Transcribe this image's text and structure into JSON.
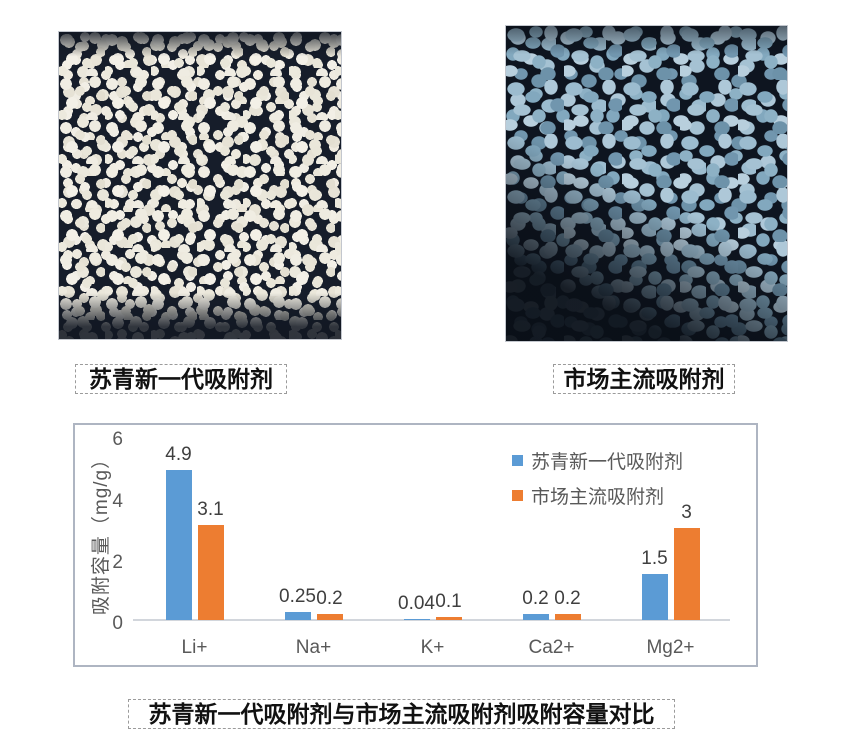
{
  "photo_labels": {
    "left": "苏青新一代吸附剂",
    "right": "市场主流吸附剂"
  },
  "caption": "苏青新一代吸附剂与市场主流吸附剂吸附容量对比",
  "chart_data": {
    "type": "bar",
    "categories": [
      "Li+",
      "Na+",
      "K+",
      "Ca2+",
      "Mg2+"
    ],
    "series": [
      {
        "name": "苏青新一代吸附剂",
        "color": "#5B9BD5",
        "values": [
          4.9,
          0.25,
          0.04,
          0.2,
          1.5
        ],
        "labels": [
          "4.9",
          "0.25",
          "0.04",
          "0.2",
          "1.5"
        ]
      },
      {
        "name": "市场主流吸附剂",
        "color": "#ED7D31",
        "values": [
          3.1,
          0.2,
          0.1,
          0.2,
          3
        ],
        "labels": [
          "3.1",
          "0.2",
          "0.1",
          "0.2",
          "3"
        ]
      }
    ],
    "ylabel": "吸附容量（mg/g）",
    "yticks": [
      0,
      2,
      4,
      6
    ],
    "ylim": [
      0,
      6
    ],
    "grid": false,
    "legend_position": "top-right"
  }
}
